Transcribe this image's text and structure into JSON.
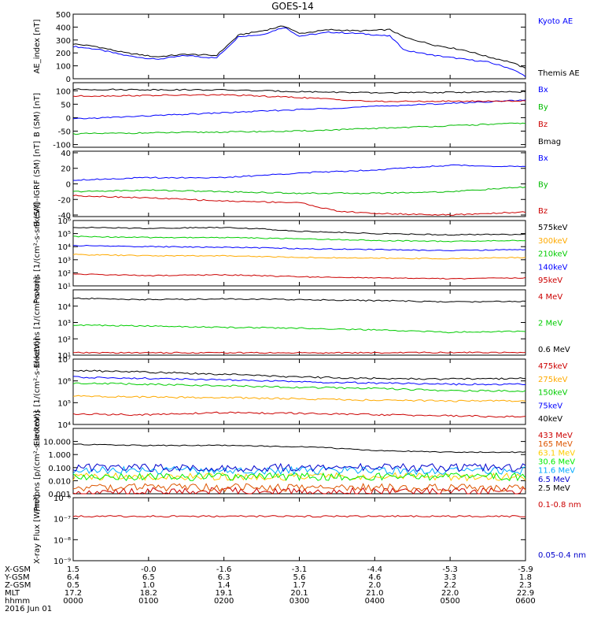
{
  "title": "GOES-14",
  "footer": {
    "row_labels": [
      "X-GSM",
      "Y-GSM",
      "Z-GSM",
      "MLT",
      "hhmm",
      "2016 Jun 01"
    ],
    "columns": [
      {
        "values": [
          "1.5",
          "6.4",
          "0.5",
          "17.2",
          "0000"
        ]
      },
      {
        "values": [
          "-0.0",
          "6.5",
          "1.0",
          "18.2",
          "0100"
        ]
      },
      {
        "values": [
          "-1.6",
          "6.3",
          "1.4",
          "19.1",
          "0200"
        ]
      },
      {
        "values": [
          "-3.1",
          "5.6",
          "1.7",
          "20.1",
          "0300"
        ]
      },
      {
        "values": [
          "-4.4",
          "4.6",
          "2.0",
          "21.0",
          "0400"
        ]
      },
      {
        "values": [
          "-5.3",
          "3.3",
          "2.2",
          "22.0",
          "0500"
        ]
      },
      {
        "values": [
          "-5.9",
          "1.8",
          "2.3",
          "22.9",
          "0600"
        ]
      }
    ]
  },
  "chart_data": [
    {
      "type": "line",
      "ylabel": "AE_index [nT]",
      "ylim": [
        0,
        500
      ],
      "yscale": "linear",
      "yticks": [
        0,
        100,
        200,
        300,
        400,
        500
      ],
      "ytick_labels": [
        "0",
        "100",
        "200",
        "300",
        "400",
        "500"
      ],
      "series": [
        {
          "name": "Kyoto AE",
          "color": "#0000ff",
          "x": [
            0,
            0.3,
            0.7,
            1.1,
            1.5,
            1.9,
            2.2,
            2.5,
            2.8,
            3.0,
            3.4,
            3.8,
            4.2,
            4.4,
            4.8,
            5.2,
            5.5,
            5.8,
            6.0
          ],
          "y": [
            250,
            230,
            180,
            150,
            180,
            160,
            330,
            340,
            400,
            330,
            360,
            350,
            330,
            220,
            180,
            150,
            130,
            80,
            20
          ]
        },
        {
          "name": "Themis AE",
          "color": "#000000",
          "x": [
            0,
            0.3,
            0.7,
            1.1,
            1.5,
            1.9,
            2.2,
            2.5,
            2.8,
            3.0,
            3.4,
            3.8,
            4.2,
            4.4,
            4.8,
            5.2,
            5.5,
            5.8,
            6.0
          ],
          "y": [
            270,
            250,
            200,
            170,
            190,
            180,
            340,
            370,
            410,
            350,
            380,
            370,
            380,
            320,
            260,
            220,
            170,
            130,
            80
          ]
        }
      ]
    },
    {
      "type": "line",
      "ylabel": "B (SM) [nT]",
      "ylim": [
        -110,
        130
      ],
      "yscale": "linear",
      "yticks": [
        -100,
        -50,
        0,
        50,
        100
      ],
      "ytick_labels": [
        "-100",
        "-50",
        "0",
        "50",
        "100"
      ],
      "series": [
        {
          "name": "Bx",
          "color": "#0000ff",
          "x": [
            0,
            3,
            6
          ],
          "y": [
            -5,
            30,
            65
          ]
        },
        {
          "name": "By",
          "color": "#00bb00",
          "x": [
            0,
            3,
            6
          ],
          "y": [
            -60,
            -50,
            -20
          ]
        },
        {
          "name": "Bz",
          "color": "#cc0000",
          "x": [
            0,
            2,
            3,
            4,
            6
          ],
          "y": [
            80,
            85,
            75,
            60,
            62
          ]
        },
        {
          "name": "Bmag",
          "color": "#000000",
          "x": [
            0,
            2,
            3,
            4,
            6
          ],
          "y": [
            105,
            103,
            97,
            92,
            96
          ]
        }
      ]
    },
    {
      "type": "line",
      "ylabel": "B (SM)-IGRF (SM) [nT]",
      "ylim": [
        -42,
        42
      ],
      "yscale": "linear",
      "yticks": [
        -40,
        -20,
        0,
        20,
        40
      ],
      "ytick_labels": [
        "-40",
        "-20",
        "0",
        "20",
        "40"
      ],
      "series": [
        {
          "name": "Bx",
          "color": "#0000ff",
          "x": [
            0,
            1,
            2,
            3,
            4,
            5,
            6
          ],
          "y": [
            5,
            8,
            8,
            14,
            18,
            24,
            22
          ]
        },
        {
          "name": "By",
          "color": "#00bb00",
          "x": [
            0,
            1,
            2,
            3,
            4,
            5,
            6
          ],
          "y": [
            -10,
            -8,
            -10,
            -12,
            -12,
            -10,
            -4
          ]
        },
        {
          "name": "Bz",
          "color": "#cc0000",
          "x": [
            0,
            1,
            2,
            3,
            3.5,
            4,
            5,
            6
          ],
          "y": [
            -15,
            -18,
            -22,
            -24,
            -35,
            -38,
            -40,
            -36
          ]
        }
      ]
    },
    {
      "type": "line",
      "ylabel": "Protons [1/(cm²-s-sr-keV)]",
      "ylim": [
        10,
        1000000
      ],
      "yscale": "log",
      "yticks": [
        10,
        100,
        1000,
        10000,
        100000,
        1000000
      ],
      "ytick_labels": [
        "10¹",
        "10²",
        "10³",
        "10⁴",
        "10⁵",
        "10⁶"
      ],
      "series": [
        {
          "name": "575keV",
          "color": "#000000",
          "x": [
            0,
            1,
            2,
            3,
            4,
            5,
            6
          ],
          "y": [
            300000,
            250000,
            300000,
            150000,
            100000,
            80000,
            90000
          ]
        },
        {
          "name": "300keV",
          "color": "#ffaa00",
          "x": [
            0,
            1,
            2,
            3,
            4,
            5,
            6
          ],
          "y": [
            2500,
            2000,
            2000,
            1500,
            1300,
            1200,
            1500
          ]
        },
        {
          "name": "210keV",
          "color": "#00cc00",
          "x": [
            0,
            1,
            2,
            3,
            4,
            5,
            6
          ],
          "y": [
            60000,
            50000,
            50000,
            40000,
            30000,
            25000,
            30000
          ]
        },
        {
          "name": "140keV",
          "color": "#0000ff",
          "x": [
            0,
            1,
            2,
            3,
            4,
            5,
            6
          ],
          "y": [
            12000,
            10000,
            9000,
            7000,
            6000,
            5000,
            6000
          ]
        },
        {
          "name": "95keV",
          "color": "#cc0000",
          "x": [
            0,
            1,
            2,
            3,
            4,
            5,
            6
          ],
          "y": [
            80,
            60,
            70,
            50,
            40,
            35,
            40
          ]
        }
      ]
    },
    {
      "type": "line",
      "ylabel": "Electrons [1/(cm²-s-sr)]",
      "ylim": [
        10,
        100000
      ],
      "yscale": "log",
      "yticks": [
        10,
        100,
        1000,
        10000
      ],
      "ytick_labels": [
        "10¹",
        "10²",
        "10³",
        "10⁴"
      ],
      "series": [
        {
          "name": "4 MeV",
          "color": "#cc0000",
          "x": [
            0,
            2,
            4,
            6
          ],
          "y": [
            14,
            14,
            14,
            15
          ]
        },
        {
          "name": "2 MeV",
          "color": "#00cc00",
          "x": [
            0,
            1,
            2,
            3,
            4,
            5,
            6
          ],
          "y": [
            700,
            600,
            500,
            450,
            350,
            250,
            300
          ]
        },
        {
          "name": "0.6 MeV",
          "color": "#000000",
          "x": [
            0,
            1,
            2,
            3,
            4,
            5,
            6
          ],
          "y": [
            30000,
            25000,
            28000,
            25000,
            22000,
            18000,
            20000
          ]
        }
      ]
    },
    {
      "type": "line",
      "ylabel": "Electrons [1/(cm²-s-sr-keV)]",
      "ylim": [
        10000,
        10000000
      ],
      "yscale": "log",
      "yticks": [
        10000,
        100000,
        1000000,
        10000000
      ],
      "ytick_labels": [
        "10⁴",
        "10⁵",
        "10⁶",
        "10⁷"
      ],
      "series": [
        {
          "name": "475keV",
          "color": "#cc0000",
          "x": [
            0,
            1,
            2,
            3,
            4,
            5,
            6
          ],
          "y": [
            30000,
            28000,
            35000,
            32000,
            28000,
            25000,
            22000
          ]
        },
        {
          "name": "275keV",
          "color": "#ffaa00",
          "x": [
            0,
            1,
            2,
            3,
            4,
            5,
            6
          ],
          "y": [
            200000,
            180000,
            170000,
            150000,
            130000,
            120000,
            120000
          ]
        },
        {
          "name": "150keV",
          "color": "#00cc00",
          "x": [
            0,
            1,
            2,
            3,
            4,
            5,
            6
          ],
          "y": [
            800000,
            700000,
            600000,
            500000,
            450000,
            350000,
            350000
          ]
        },
        {
          "name": "75keV",
          "color": "#0000ff",
          "x": [
            0,
            1,
            2,
            3,
            4,
            5,
            6
          ],
          "y": [
            1500000,
            1300000,
            1100000,
            900000,
            800000,
            700000,
            700000
          ]
        },
        {
          "name": "40keV",
          "color": "#000000",
          "x": [
            0,
            1,
            2,
            3,
            4,
            5,
            6
          ],
          "y": [
            3000000,
            2500000,
            2000000,
            1500000,
            1300000,
            1200000,
            1300000
          ]
        }
      ]
    },
    {
      "type": "line",
      "ylabel": "Protons [p/(cm²-s-sr-keV)]",
      "ylim": [
        0.001,
        100
      ],
      "yscale": "log",
      "yticks": [
        0.001,
        0.01,
        0.1,
        1,
        10
      ],
      "ytick_labels": [
        "0.001",
        "0.010",
        "0.100",
        "1.000",
        "10.000"
      ],
      "series": [
        {
          "name": "433 MeV",
          "color": "#cc0000",
          "x": [
            0,
            6
          ],
          "y": [
            0.0015,
            0.0015
          ]
        },
        {
          "name": "165 MeV",
          "color": "#dd5500",
          "x": [
            0,
            6
          ],
          "y": [
            0.003,
            0.003
          ]
        },
        {
          "name": "63.1 MeV",
          "color": "#ffcc00",
          "x": [
            0,
            6
          ],
          "y": [
            0.02,
            0.02
          ]
        },
        {
          "name": "30.6 MeV",
          "color": "#00ee00",
          "x": [
            0,
            6
          ],
          "y": [
            0.02,
            0.02
          ]
        },
        {
          "name": "11.6 MeV",
          "color": "#00aaff",
          "x": [
            0,
            6
          ],
          "y": [
            0.06,
            0.06
          ]
        },
        {
          "name": "6.5 MeV",
          "color": "#0000cc",
          "x": [
            0,
            6
          ],
          "y": [
            0.1,
            0.1
          ]
        },
        {
          "name": "2.5 MeV",
          "color": "#000000",
          "x": [
            0,
            1,
            2,
            3,
            4,
            5,
            6
          ],
          "y": [
            6,
            5,
            5,
            4,
            2,
            1.5,
            1.5
          ]
        }
      ]
    },
    {
      "type": "line",
      "ylabel": "X-ray Flux [W/m²]",
      "ylim": [
        1e-09,
        1e-06
      ],
      "yscale": "log",
      "yticks": [
        1e-09,
        1e-08,
        1e-07,
        1e-06
      ],
      "ytick_labels": [
        "10⁻⁹",
        "10⁻⁸",
        "10⁻⁷",
        "10⁻⁶"
      ],
      "series": [
        {
          "name": "0.1-0.8 nm",
          "color": "#cc0000",
          "x": [
            0,
            6
          ],
          "y": [
            1.3e-07,
            1.3e-07
          ]
        },
        {
          "name": "0.05-0.4 nm",
          "color": "#0000cc",
          "x": [],
          "y": []
        }
      ]
    }
  ]
}
